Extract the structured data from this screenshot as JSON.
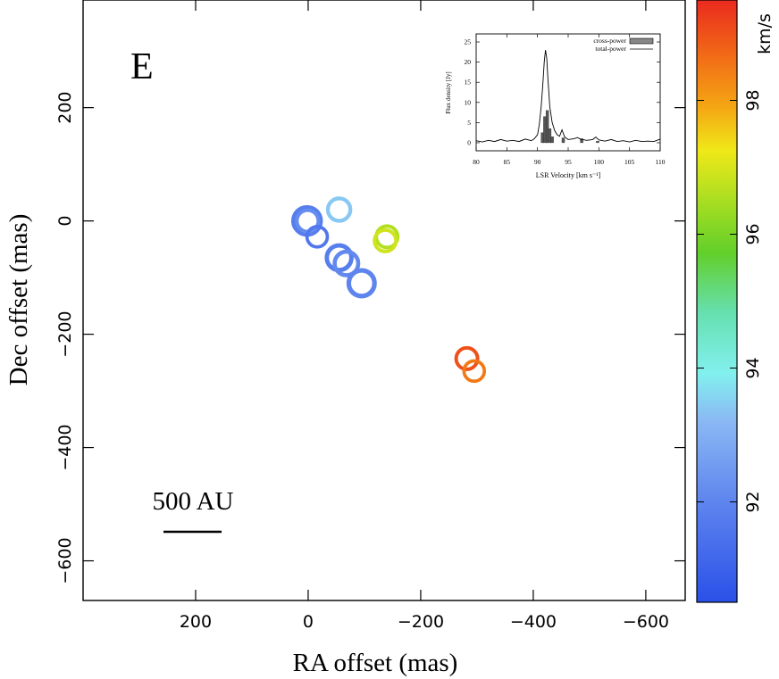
{
  "chart_data": [
    {
      "type": "scatter",
      "panel_label": "E",
      "xlabel": "RA offset (mas)",
      "ylabel": "Dec offset (mas)",
      "x_reversed": true,
      "xlim": [
        400,
        -670
      ],
      "ylim": [
        -670,
        390
      ],
      "x_ticks": [
        200,
        0,
        -200,
        -400,
        -600
      ],
      "x_tick_labels": [
        "200",
        "0",
        "−200",
        "−400",
        "−600"
      ],
      "y_ticks": [
        200,
        0,
        -200,
        -400,
        -600
      ],
      "y_tick_labels": [
        "200",
        "0",
        "−200",
        "−400",
        "−600"
      ],
      "grid": false,
      "scale_bar": {
        "label": "500 AU"
      },
      "colorbar": {
        "label": "km/s",
        "range": [
          90.5,
          99.5
        ],
        "ticks": [
          92,
          94,
          96,
          98
        ],
        "tick_labels": [
          "92",
          "94",
          "96",
          "98"
        ]
      },
      "points": [
        {
          "x": 2,
          "y": 0,
          "v": 91.8,
          "strength": 1.0
        },
        {
          "x": 1,
          "y": 0,
          "v": 92.2,
          "strength": 0.5
        },
        {
          "x": -16,
          "y": -28,
          "v": 91.6,
          "strength": 0.4
        },
        {
          "x": -55,
          "y": 20,
          "v": 93.4,
          "strength": 0.6
        },
        {
          "x": -55,
          "y": -65,
          "v": 91.8,
          "strength": 0.8
        },
        {
          "x": -68,
          "y": -75,
          "v": 92.1,
          "strength": 0.7
        },
        {
          "x": -95,
          "y": -110,
          "v": 92.0,
          "strength": 0.9
        },
        {
          "x": -140,
          "y": -28,
          "v": 96.6,
          "strength": 0.5
        },
        {
          "x": -137,
          "y": -35,
          "v": 96.9,
          "strength": 0.5
        },
        {
          "x": -282,
          "y": -243,
          "v": 99.0,
          "strength": 0.5
        },
        {
          "x": -295,
          "y": -265,
          "v": 98.5,
          "strength": 0.4
        }
      ]
    },
    {
      "type": "line",
      "inset": true,
      "xlabel": "LSR Velocity [km s⁻¹]",
      "ylabel": "Flux density [Jy]",
      "xlim": [
        80,
        110
      ],
      "ylim": [
        -2,
        27
      ],
      "x_ticks": [
        80,
        85,
        90,
        95,
        100,
        105,
        110
      ],
      "x_tick_labels": [
        "80",
        "85",
        "90",
        "95",
        "100",
        "105",
        "110"
      ],
      "y_ticks": [
        0,
        5,
        10,
        15,
        20,
        25
      ],
      "y_tick_labels": [
        "0",
        "5",
        "10",
        "15",
        "20",
        "25"
      ],
      "legend": {
        "position": "top-right",
        "entries": [
          "cross-power",
          "total-power"
        ]
      },
      "series": [
        {
          "name": "total-power",
          "style": "line",
          "x": [
            80,
            81,
            82,
            83,
            84,
            85,
            86,
            87,
            88,
            89,
            89.5,
            90,
            90.3,
            90.6,
            90.9,
            91.1,
            91.3,
            91.5,
            91.7,
            92.0,
            92.4,
            92.8,
            93.2,
            93.6,
            94.0,
            94.4,
            95,
            96,
            96.5,
            97,
            98,
            99,
            99.5,
            100,
            101,
            102,
            103,
            104,
            105,
            106,
            107,
            108,
            109,
            110
          ],
          "y": [
            0.5,
            0.2,
            0.6,
            0.3,
            0.8,
            0.4,
            0.6,
            0.3,
            0.9,
            0.5,
            1.0,
            2.0,
            4.5,
            9.0,
            15.0,
            20.0,
            23.0,
            21.0,
            16.0,
            9.0,
            5.0,
            3.0,
            2.0,
            1.6,
            3.2,
            1.5,
            0.8,
            1.0,
            1.3,
            0.9,
            0.6,
            0.8,
            1.4,
            0.7,
            0.4,
            0.8,
            0.3,
            0.5,
            0.2,
            0.6,
            0.3,
            0.4,
            0.3,
            0.9
          ]
        },
        {
          "name": "cross-power",
          "style": "bar",
          "x": [
            90.8,
            91.2,
            91.6,
            92.0,
            92.4,
            94.2,
            97.2,
            99.8
          ],
          "y": [
            2.5,
            6.5,
            8.0,
            3.5,
            1.5,
            1.2,
            1.0,
            0.4
          ]
        }
      ]
    }
  ]
}
